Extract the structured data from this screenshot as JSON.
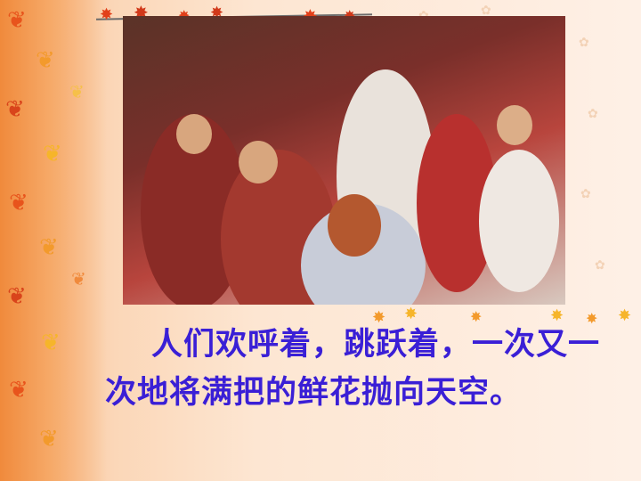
{
  "slide": {
    "caption": "人们欢呼着，跳跃着，一次又一次地将满把的鲜花抛向天空。"
  }
}
